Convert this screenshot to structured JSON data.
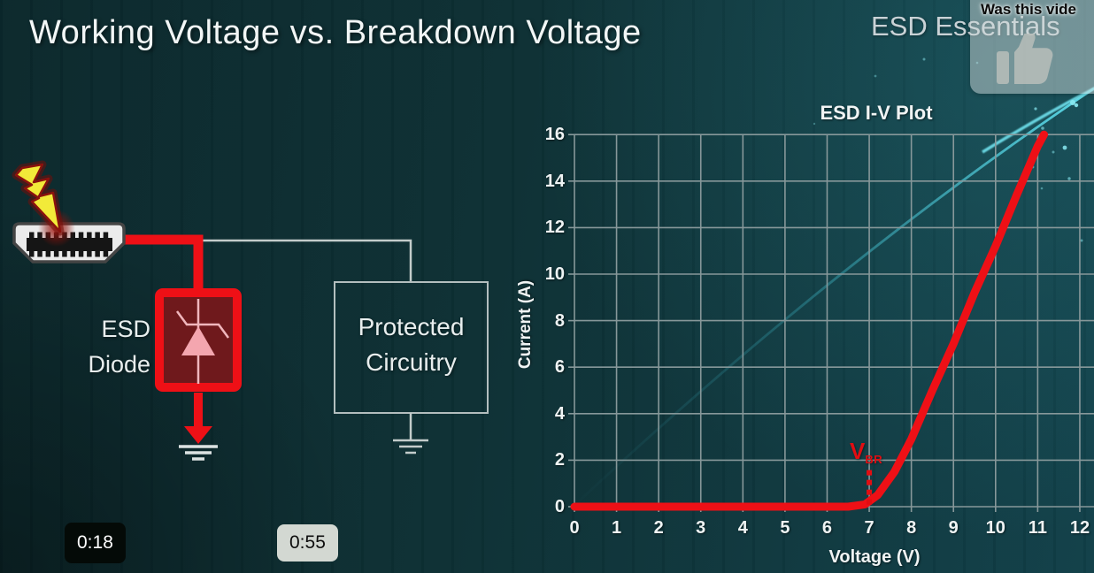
{
  "slide": {
    "title": "Working Voltage vs. Breakdown Voltage",
    "brand": "ESD Essentials"
  },
  "poll_overlay": {
    "text": "Was this vide",
    "icon": "thumbs-up-icon"
  },
  "markers": {
    "m1": "0:18",
    "m2": "0:55"
  },
  "diagram": {
    "esd_label_line1": "ESD",
    "esd_label_line2": "Diode",
    "protected_line1": "Protected",
    "protected_line2": "Circuitry",
    "icons": [
      "lightning-bolt-icon",
      "hdmi-connector-icon",
      "esd-diode-symbol",
      "ground-icon"
    ],
    "surge_wire_color": "#ee1016",
    "signal_wire_color": "#c3cccb"
  },
  "colors": {
    "accent_red": "#ee1016",
    "swoosh_teal": "#62dde9",
    "grid_gray": "#87989a",
    "background_teal": "#0d3034"
  },
  "chart_data": {
    "type": "line",
    "title": "ESD I-V Plot",
    "xlabel": "Voltage (V)",
    "ylabel": "Current (A)",
    "xlim": [
      0,
      12.3
    ],
    "ylim": [
      0,
      16
    ],
    "xticks": [
      0,
      1,
      2,
      3,
      4,
      5,
      6,
      7,
      8,
      9,
      10,
      11,
      12
    ],
    "yticks": [
      0,
      2,
      4,
      6,
      8,
      10,
      12,
      14,
      16
    ],
    "grid": true,
    "legend": "none",
    "series": [
      {
        "name": "ESD diode I-V curve",
        "color": "#ee1016",
        "points": [
          [
            0,
            0
          ],
          [
            1,
            0
          ],
          [
            2,
            0
          ],
          [
            3,
            0
          ],
          [
            4,
            0
          ],
          [
            5,
            0
          ],
          [
            6,
            0
          ],
          [
            6.5,
            0
          ],
          [
            6.9,
            0.1
          ],
          [
            7.2,
            0.5
          ],
          [
            7.6,
            1.5
          ],
          [
            8,
            2.9
          ],
          [
            8.5,
            5.0
          ],
          [
            9,
            7.0
          ],
          [
            9.5,
            9.2
          ],
          [
            10,
            11.2
          ],
          [
            10.5,
            13.4
          ],
          [
            11,
            15.5
          ],
          [
            11.15,
            16
          ]
        ]
      }
    ],
    "annotations": [
      {
        "id": "breakdown-voltage",
        "label": "V",
        "sub": "BR",
        "x": 7,
        "dotted_from": 0.2,
        "dotted_to": 1.6,
        "color": "#e20d12"
      }
    ]
  }
}
